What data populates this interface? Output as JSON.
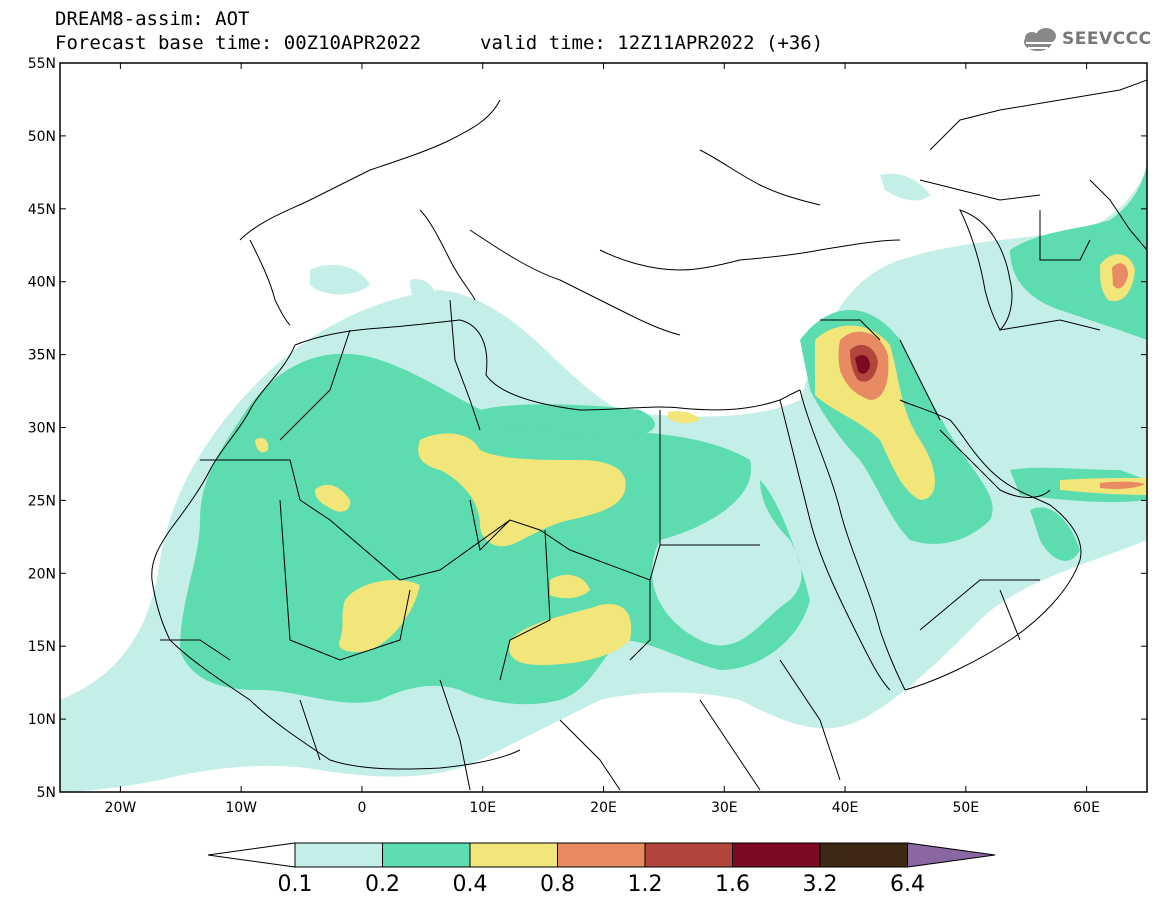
{
  "header": {
    "line1": "DREAM8-assim: AOT",
    "line2": "Forecast base time: 00Z10APR2022",
    "valid": "valid time: 12Z11APR2022 (+36)"
  },
  "logo": {
    "text": "SEEVCCC",
    "icon": "cloud-icon"
  },
  "map": {
    "lat_labels": [
      "55N",
      "50N",
      "45N",
      "40N",
      "35N",
      "30N",
      "25N",
      "20N",
      "15N",
      "10N",
      "5N"
    ],
    "lon_labels": [
      "20W",
      "10W",
      "0",
      "10E",
      "20E",
      "30E",
      "40E",
      "50E",
      "60E"
    ]
  },
  "colorbar": {
    "labels": [
      "0.1",
      "0.2",
      "0.4",
      "0.8",
      "1.2",
      "1.6",
      "3.2",
      "6.4"
    ],
    "colors": [
      "#ffffff",
      "#c4efe9",
      "#5cdcaf",
      "#f2e57a",
      "#e88a62",
      "#b3463c",
      "#7c0a22",
      "#3c2814",
      "#8a66a3"
    ]
  }
}
